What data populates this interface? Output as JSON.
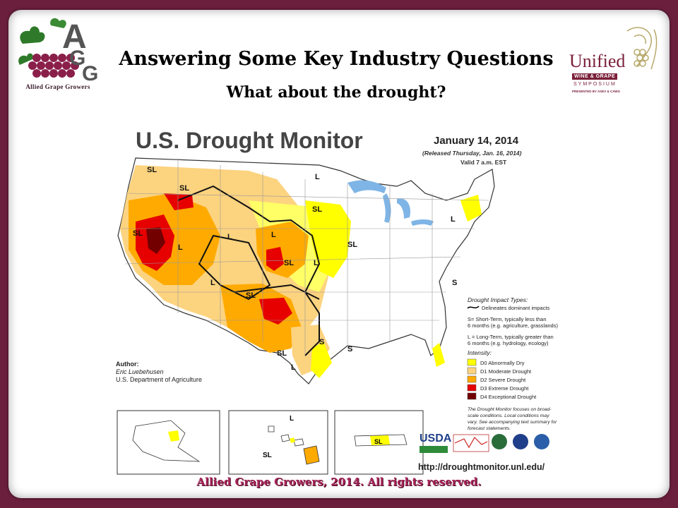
{
  "slide": {
    "title": "Answering Some Key Industry Questions",
    "subtitle": "What about the drought?",
    "footer": "Allied Grape Growers, 2014.  All rights reserved."
  },
  "logo_left": {
    "caption": "Allied Grape Growers",
    "letters": "AGG"
  },
  "logo_right": {
    "name": "Unified",
    "line1": "WINE & GRAPE",
    "line2": "SYMPOSIUM",
    "line3": "PRESENTED BY ASEV & CAWG"
  },
  "map": {
    "title": "U.S. Drought Monitor",
    "date": "January 14, 2014",
    "released": "(Released Thursday, Jan. 16, 2014)",
    "valid": "Valid 7 a.m. EST",
    "author_label": "Author:",
    "author_name": "Eric Luebehusen",
    "author_org": "U.S. Department of Agriculture",
    "url": "http://droughtmonitor.unl.edu/",
    "impact_title": "Drought Impact Types:",
    "impact_line": "Delineates dominant impacts",
    "impact_s": "S= Short-Term, typically less than",
    "impact_s2": "6 months (e.g. agriculture, grasslands)",
    "impact_l": "L = Long-Term, typically greater than",
    "impact_l2": "6 months (e.g. hydrology, ecology)",
    "intensity_title": "Intensity:",
    "legend": [
      {
        "label": "D0 Abnormally Dry",
        "color": "#ffff00"
      },
      {
        "label": "D1 Moderate Drought",
        "color": "#fcd37f"
      },
      {
        "label": "D2 Severe Drought",
        "color": "#ffaa00"
      },
      {
        "label": "D3 Extreme Drought",
        "color": "#e60000"
      },
      {
        "label": "D4 Exceptional Drought",
        "color": "#730000"
      }
    ],
    "note1": "The Drought Monitor focuses on broad-",
    "note2": "scale conditions. Local conditions may",
    "note3": "vary. See accompanying text summary for",
    "note4": "forecast statements.",
    "usda": "USDA",
    "labels": {
      "sl": "SL",
      "l": "L",
      "s": "S"
    }
  }
}
